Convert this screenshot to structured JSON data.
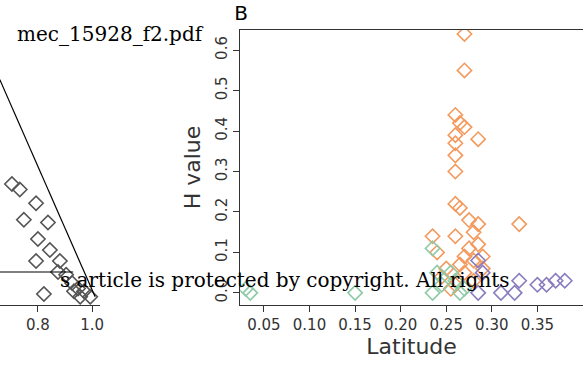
{
  "chart_data": [
    {
      "type": "scatter",
      "xlim": [
        0.66,
        1.03
      ],
      "xticks": [
        0.8,
        {
          "value": 1.0,
          "label": "1.0"
        }
      ],
      "ylim": [
        0,
        1
      ],
      "yticks": [],
      "tick_labels": "x",
      "grid": false,
      "series": [
        {
          "type": "scatter",
          "color": "#555555",
          "marker": "diamond-open",
          "x": [
            0.704,
            0.733,
            0.793,
            0.748,
            0.837,
            0.8,
            0.793,
            0.844,
            0.881,
            0.874,
            0.904,
            0.822,
            0.926,
            0.948,
            0.97,
            0.993,
            0.956,
            0.933
          ],
          "y": [
            0.44,
            0.42,
            0.37,
            0.31,
            0.3,
            0.24,
            0.16,
            0.2,
            0.16,
            0.12,
            0.11,
            0.04,
            0.08,
            0.06,
            0.05,
            0.03,
            0.03,
            0.05
          ]
        },
        {
          "type": "line",
          "color": "#000000",
          "line_style": "solid",
          "x": [
            0.659,
            1.011
          ],
          "y": [
            0.82,
            0.03
          ]
        },
        {
          "type": "line",
          "color": "#000000",
          "line_style": "solid",
          "x": [
            0.66,
            0.93
          ],
          "y": [
            0.12,
            0.12
          ]
        }
      ]
    },
    {
      "type": "scatter",
      "title": "B",
      "x_label": "Latitude",
      "y_label": "H value",
      "xlim": [
        0.024,
        0.4
      ],
      "xticks": [
        0.05,
        {
          "value": 0.1,
          "label": "0.10"
        },
        0.15,
        {
          "value": 0.2,
          "label": "0.20"
        },
        0.25,
        {
          "value": 0.3,
          "label": "0.30"
        },
        0.35
      ],
      "ylim": [
        -0.03,
        0.65
      ],
      "yticks": [
        {
          "value": 0,
          "label": "0.0"
        },
        0.1,
        0.2,
        0.3,
        0.4,
        0.5,
        0.6
      ],
      "grid": false,
      "annotations": [
        "mec_15928_f2.pdf",
        "s article is protected by copyright. All rights"
      ],
      "series": [
        {
          "type": "scatter",
          "color": "#f39a5e",
          "marker": "diamond-open",
          "x": [
            0.27,
            0.27,
            0.26,
            0.265,
            0.27,
            0.26,
            0.285,
            0.26,
            0.26,
            0.26,
            0.26,
            0.265,
            0.275,
            0.285,
            0.33,
            0.26,
            0.235,
            0.28,
            0.285,
            0.275,
            0.24,
            0.27,
            0.28,
            0.265,
            0.29,
            0.27,
            0.245,
            0.28,
            0.26,
            0.255,
            0.29,
            0.25
          ],
          "y": [
            0.64,
            0.55,
            0.44,
            0.42,
            0.41,
            0.39,
            0.38,
            0.37,
            0.34,
            0.3,
            0.22,
            0.21,
            0.18,
            0.17,
            0.17,
            0.14,
            0.14,
            0.15,
            0.12,
            0.11,
            0.1,
            0.09,
            0.08,
            0.07,
            0.06,
            0.05,
            0.04,
            0.03,
            0.02,
            0.01,
            0.09,
            0.06
          ]
        },
        {
          "type": "scatter",
          "color": "#8fcaa6",
          "marker": "diamond-open",
          "x": [
            0.03,
            0.035,
            0.15,
            0.235,
            0.24,
            0.235,
            0.26,
            0.265,
            0.255,
            0.27,
            0.245
          ],
          "y": [
            0.01,
            0.0,
            0.0,
            0.11,
            0.05,
            0.0,
            0.03,
            0.0,
            0.05,
            0.01,
            0.02
          ]
        },
        {
          "type": "scatter",
          "color": "#8a7dbe",
          "marker": "diamond-open",
          "x": [
            0.285,
            0.29,
            0.285,
            0.31,
            0.325,
            0.33,
            0.36,
            0.37,
            0.38,
            0.35
          ],
          "y": [
            0.08,
            0.05,
            0.0,
            0.0,
            0.0,
            0.03,
            0.02,
            0.03,
            0.03,
            0.02
          ]
        }
      ]
    }
  ]
}
